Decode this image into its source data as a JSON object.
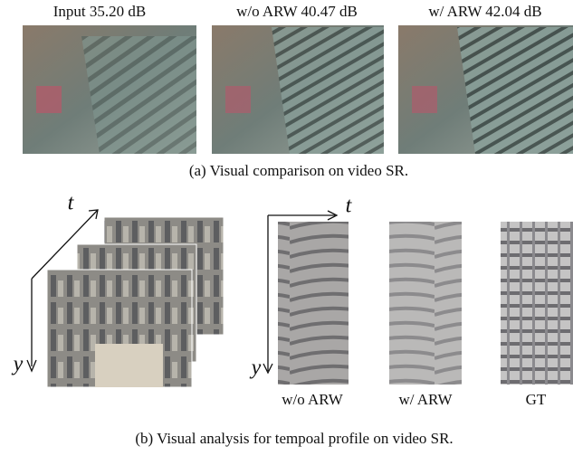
{
  "panels": [
    {
      "label": "Input 35.20 dB"
    },
    {
      "label": "w/o ARW 40.47 dB"
    },
    {
      "label": "w/ ARW 42.04 dB"
    }
  ],
  "caption_a": "(a) Visual comparison on video SR.",
  "axes": [
    {
      "t": "t",
      "y": "y"
    },
    {
      "t": "t",
      "y": "y"
    }
  ],
  "profiles": [
    {
      "label": "w/o ARW"
    },
    {
      "label": "w/ ARW"
    },
    {
      "label": "GT"
    }
  ],
  "caption_b": "(b) Visual analysis for tempoal profile on video SR."
}
